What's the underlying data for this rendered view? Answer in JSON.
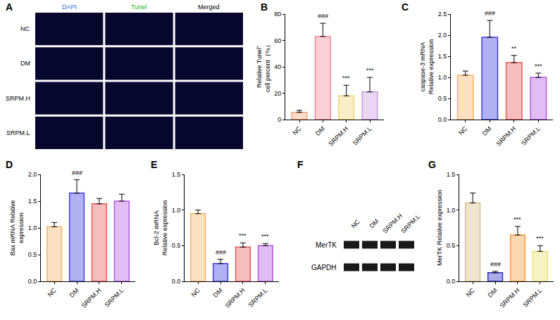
{
  "figure": {
    "A": {
      "panel": "A",
      "columns": [
        "DAPI",
        "Tunel",
        "Merged"
      ],
      "colors": [
        "#3b6fd6",
        "#22b022",
        "#000000"
      ],
      "rows": [
        "NC",
        "DM",
        "SRPM.H",
        "SRPM.L"
      ]
    },
    "F": {
      "panel": "F",
      "lanes": [
        "NC",
        "DM",
        "SRPM.H",
        "SRPM.L"
      ],
      "bands": [
        "MerTK",
        "GAPDH"
      ]
    }
  },
  "chart_data": [
    {
      "panel": "B",
      "type": "bar",
      "y_label": "Relative Tunel⁺ cell percent（%）",
      "categories": [
        "NC",
        "DM",
        "SRPM.H",
        "SRPM.L"
      ],
      "values": [
        5.5,
        63,
        18,
        21
      ],
      "error": [
        1.5,
        10,
        8,
        11
      ],
      "significance": [
        null,
        "###",
        "***",
        "***"
      ],
      "colors": [
        "#f0a878",
        "#f08a98",
        "#f0d870",
        "#c89ae0"
      ],
      "ylim": [
        0,
        80
      ],
      "yticks": [
        0,
        20,
        40,
        60,
        80
      ]
    },
    {
      "panel": "C",
      "type": "bar",
      "y_label": "caspase-3 mRNA Relative expression",
      "categories": [
        "NC",
        "DM",
        "SRPM.H",
        "SRPM.L"
      ],
      "values": [
        1.05,
        1.95,
        1.35,
        1.0
      ],
      "error": [
        0.1,
        0.4,
        0.17,
        0.1
      ],
      "significance": [
        null,
        "###",
        "**",
        "***"
      ],
      "colors": [
        "#f4b46a",
        "#3f3fe0",
        "#e85a5a",
        "#b45ae0"
      ],
      "ylim": [
        0,
        2.5
      ],
      "yticks": [
        {
          "value": 0,
          "label": "0.0"
        },
        0.5,
        {
          "value": 1,
          "label": "1.0"
        },
        1.5,
        {
          "value": 2,
          "label": "2.0"
        },
        2.5
      ]
    },
    {
      "panel": "D",
      "type": "bar",
      "y_label": "Bax mRNA Relative expression",
      "categories": [
        "NC",
        "DM",
        "SRPM.H",
        "SRPM.L"
      ],
      "values": [
        1.02,
        1.65,
        1.45,
        1.5
      ],
      "error": [
        0.08,
        0.25,
        0.1,
        0.13
      ],
      "significance": [
        null,
        "###",
        null,
        null
      ],
      "colors": [
        "#f4b46a",
        "#3f3fe0",
        "#e85a5a",
        "#b45ae0"
      ],
      "ylim": [
        0,
        2
      ],
      "yticks": [
        {
          "value": 0,
          "label": "0.0"
        },
        0.5,
        {
          "value": 1,
          "label": "1.0"
        },
        1.5,
        {
          "value": 2,
          "label": "2.0"
        }
      ]
    },
    {
      "panel": "E",
      "type": "bar",
      "y_label": "Bcl-2 mRNA Relative expression",
      "categories": [
        "NC",
        "DM",
        "SRPM.H",
        "SRPM.L"
      ],
      "values": [
        0.95,
        0.25,
        0.48,
        0.5
      ],
      "error": [
        0.05,
        0.06,
        0.06,
        0.03
      ],
      "significance": [
        null,
        "###",
        "***",
        "***"
      ],
      "colors": [
        "#f4b46a",
        "#3f3fe0",
        "#e85a5a",
        "#b45ae0"
      ],
      "ylim": [
        0,
        1.5
      ],
      "yticks": [
        {
          "value": 0,
          "label": "0.0"
        },
        0.5,
        {
          "value": 1,
          "label": "1.0"
        },
        1.5
      ]
    },
    {
      "panel": "G",
      "type": "bar",
      "y_label": "MerTK Relative expression",
      "categories": [
        "NC",
        "DM",
        "SRPM.H",
        "SRPM.L"
      ],
      "values": [
        1.1,
        0.12,
        0.65,
        0.42
      ],
      "error": [
        0.14,
        0.02,
        0.12,
        0.08
      ],
      "significance": [
        null,
        "###",
        "***",
        "***"
      ],
      "colors": [
        "#d9c08a",
        "#2f2fc8",
        "#f29a3a",
        "#eee070"
      ],
      "ylim": [
        0,
        1.5
      ],
      "yticks": [
        {
          "value": 0,
          "label": "0.0"
        },
        0.5,
        {
          "value": 1,
          "label": "1.0"
        },
        1.5
      ]
    }
  ]
}
